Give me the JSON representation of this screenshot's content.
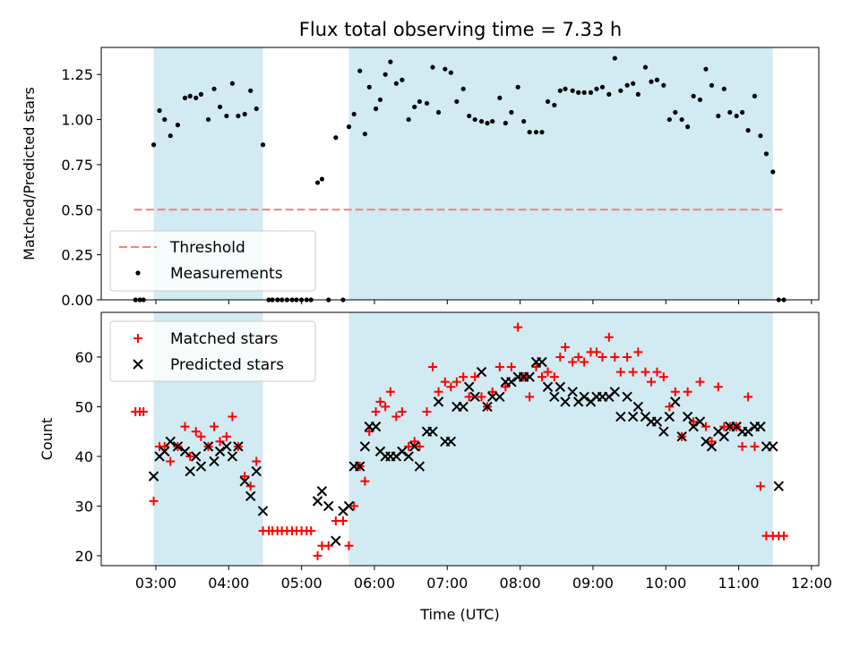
{
  "title": "Flux total observing time = 7.33 h",
  "colors": {
    "threshold": "#f08080",
    "measurements": "#000000",
    "matched": "#ff0000",
    "predicted": "#000000",
    "span": "#add8e6"
  },
  "chart_data": [
    {
      "type": "scatter",
      "ylabel": "Matched/Predicted stars",
      "ylim": [
        0,
        1.4
      ],
      "yticks": [
        0,
        0.25,
        0.5,
        0.75,
        1.0,
        1.25
      ],
      "ytick_labels": [
        "0.00",
        "0.25",
        "0.50",
        "0.75",
        "1.00",
        "1.25"
      ],
      "xlim": [
        2.25,
        12.1
      ],
      "xticks": [
        3,
        4,
        5,
        6,
        7,
        8,
        9,
        10,
        11,
        12
      ],
      "shaded_spans": [
        [
          2.97,
          4.47
        ],
        [
          5.65,
          11.47
        ]
      ],
      "legend_position": "lower-left",
      "threshold": {
        "name": "Threshold",
        "value": 0.5,
        "x_range": [
          2.7,
          11.6
        ]
      },
      "series": [
        {
          "name": "Measurements",
          "x": [
            2.72,
            2.78,
            2.83,
            2.97,
            3.05,
            3.12,
            3.2,
            3.3,
            3.4,
            3.47,
            3.55,
            3.62,
            3.72,
            3.8,
            3.88,
            3.97,
            4.05,
            4.13,
            4.22,
            4.3,
            4.38,
            4.47,
            4.55,
            4.6,
            4.67,
            4.73,
            4.8,
            4.87,
            4.93,
            5.0,
            5.07,
            5.13,
            5.22,
            5.28,
            5.37,
            5.47,
            5.57,
            5.65,
            5.72,
            5.8,
            5.87,
            5.93,
            6.02,
            6.08,
            6.15,
            6.22,
            6.3,
            6.38,
            6.47,
            6.55,
            6.62,
            6.72,
            6.8,
            6.88,
            6.97,
            7.05,
            7.13,
            7.22,
            7.3,
            7.38,
            7.47,
            7.55,
            7.62,
            7.72,
            7.8,
            7.88,
            7.97,
            8.05,
            8.13,
            8.22,
            8.3,
            8.38,
            8.47,
            8.55,
            8.62,
            8.72,
            8.8,
            8.88,
            8.97,
            9.05,
            9.13,
            9.22,
            9.3,
            9.38,
            9.47,
            9.55,
            9.62,
            9.72,
            9.8,
            9.88,
            9.97,
            10.05,
            10.13,
            10.22,
            10.3,
            10.38,
            10.47,
            10.55,
            10.63,
            10.72,
            10.8,
            10.88,
            10.97,
            11.05,
            11.13,
            11.22,
            11.3,
            11.38,
            11.47,
            11.55,
            11.62
          ],
          "y": [
            0.0,
            0.0,
            0.0,
            0.86,
            1.05,
            1.0,
            0.91,
            0.97,
            1.12,
            1.13,
            1.12,
            1.14,
            1.0,
            1.17,
            1.07,
            1.02,
            1.2,
            1.02,
            1.03,
            1.16,
            1.06,
            0.86,
            0.0,
            0.0,
            0.0,
            0.0,
            0.0,
            0.0,
            0.0,
            0.0,
            0.0,
            0.0,
            0.65,
            0.67,
            0.0,
            0.9,
            0.0,
            0.96,
            1.03,
            1.27,
            0.92,
            1.18,
            1.06,
            1.11,
            1.25,
            1.32,
            1.2,
            1.22,
            1.0,
            1.07,
            1.1,
            1.09,
            1.29,
            1.04,
            1.28,
            1.26,
            1.1,
            1.17,
            1.02,
            1.0,
            0.99,
            0.98,
            0.99,
            1.12,
            0.98,
            1.04,
            1.18,
            0.99,
            0.93,
            0.93,
            0.93,
            1.1,
            1.08,
            1.16,
            1.17,
            1.16,
            1.15,
            1.15,
            1.15,
            1.17,
            1.18,
            1.14,
            1.34,
            1.16,
            1.19,
            1.2,
            1.14,
            1.29,
            1.21,
            1.22,
            1.19,
            1.0,
            1.04,
            1.0,
            0.96,
            1.13,
            1.11,
            1.28,
            1.19,
            1.02,
            1.17,
            1.04,
            1.02,
            1.04,
            0.94,
            1.13,
            0.91,
            0.81,
            0.71,
            0.0,
            0.0
          ]
        }
      ]
    },
    {
      "type": "scatter",
      "ylabel": "Count",
      "xlabel": "Time (UTC)",
      "ylim": [
        18,
        69
      ],
      "yticks": [
        20,
        30,
        40,
        50,
        60
      ],
      "xlim": [
        2.25,
        12.1
      ],
      "xticks": [
        3,
        4,
        5,
        6,
        7,
        8,
        9,
        10,
        11,
        12
      ],
      "xtick_labels": [
        "03:00",
        "04:00",
        "05:00",
        "06:00",
        "07:00",
        "08:00",
        "09:00",
        "10:00",
        "11:00",
        "12:00"
      ],
      "shaded_spans": [
        [
          2.97,
          4.47
        ],
        [
          5.65,
          11.47
        ]
      ],
      "legend_position": "upper-left",
      "series": [
        {
          "name": "Matched stars",
          "marker": "plus",
          "x": [
            2.72,
            2.78,
            2.83,
            2.97,
            3.05,
            3.12,
            3.2,
            3.3,
            3.4,
            3.47,
            3.55,
            3.62,
            3.72,
            3.8,
            3.88,
            3.97,
            4.05,
            4.13,
            4.22,
            4.3,
            4.38,
            4.47,
            4.55,
            4.6,
            4.67,
            4.73,
            4.8,
            4.87,
            4.93,
            5.0,
            5.07,
            5.13,
            5.22,
            5.28,
            5.37,
            5.47,
            5.57,
            5.65,
            5.72,
            5.8,
            5.87,
            5.93,
            6.02,
            6.08,
            6.15,
            6.22,
            6.3,
            6.38,
            6.47,
            6.55,
            6.62,
            6.72,
            6.8,
            6.88,
            6.97,
            7.05,
            7.13,
            7.22,
            7.3,
            7.38,
            7.47,
            7.55,
            7.62,
            7.72,
            7.8,
            7.88,
            7.97,
            8.05,
            8.13,
            8.22,
            8.3,
            8.38,
            8.47,
            8.55,
            8.62,
            8.72,
            8.8,
            8.88,
            8.97,
            9.05,
            9.13,
            9.22,
            9.3,
            9.38,
            9.47,
            9.55,
            9.62,
            9.72,
            9.8,
            9.88,
            9.97,
            10.05,
            10.13,
            10.22,
            10.3,
            10.38,
            10.47,
            10.55,
            10.63,
            10.72,
            10.8,
            10.88,
            10.97,
            11.05,
            11.13,
            11.22,
            11.3,
            11.38,
            11.47,
            11.55,
            11.62
          ],
          "y": [
            49,
            49,
            49,
            31,
            42,
            42,
            39,
            42,
            46,
            40,
            45,
            44,
            42,
            46,
            43,
            44,
            48,
            42,
            36,
            34,
            39,
            25,
            25,
            25,
            25,
            25,
            25,
            25,
            25,
            25,
            25,
            25,
            20,
            22,
            22,
            27,
            27,
            22,
            30,
            38,
            35,
            45,
            49,
            51,
            50,
            53,
            48,
            49,
            42,
            43,
            42,
            49,
            58,
            53,
            55,
            54,
            55,
            56,
            52,
            56,
            52,
            50,
            53,
            58,
            54,
            58,
            66,
            56,
            52,
            58,
            56,
            57,
            56,
            60,
            62,
            59,
            60,
            59,
            61,
            61,
            60,
            64,
            60,
            57,
            60,
            57,
            61,
            57,
            55,
            57,
            56,
            50,
            53,
            44,
            53,
            47,
            55,
            46,
            43,
            54,
            46,
            46,
            46,
            42,
            52,
            42,
            34,
            24,
            24,
            24,
            24
          ]
        },
        {
          "name": "Predicted stars",
          "marker": "x",
          "x": [
            2.97,
            3.05,
            3.12,
            3.2,
            3.3,
            3.4,
            3.47,
            3.55,
            3.62,
            3.72,
            3.8,
            3.88,
            3.97,
            4.05,
            4.13,
            4.22,
            4.3,
            4.38,
            4.47,
            5.22,
            5.28,
            5.37,
            5.47,
            5.57,
            5.65,
            5.72,
            5.8,
            5.87,
            5.93,
            6.02,
            6.08,
            6.15,
            6.22,
            6.3,
            6.38,
            6.47,
            6.55,
            6.62,
            6.72,
            6.8,
            6.88,
            6.97,
            7.05,
            7.13,
            7.22,
            7.3,
            7.38,
            7.47,
            7.55,
            7.62,
            7.72,
            7.8,
            7.88,
            7.97,
            8.05,
            8.13,
            8.22,
            8.3,
            8.38,
            8.47,
            8.55,
            8.62,
            8.72,
            8.8,
            8.88,
            8.97,
            9.05,
            9.13,
            9.22,
            9.3,
            9.38,
            9.47,
            9.55,
            9.62,
            9.72,
            9.8,
            9.88,
            9.97,
            10.05,
            10.13,
            10.22,
            10.3,
            10.38,
            10.47,
            10.55,
            10.63,
            10.72,
            10.8,
            10.88,
            10.97,
            11.05,
            11.13,
            11.22,
            11.3,
            11.38,
            11.47,
            11.55
          ],
          "y": [
            36,
            40,
            41,
            43,
            42,
            41,
            37,
            40,
            38,
            42,
            39,
            41,
            42,
            40,
            42,
            35,
            32,
            37,
            29,
            31,
            33,
            30,
            23,
            29,
            30,
            38,
            38,
            42,
            46,
            46,
            41,
            40,
            40,
            40,
            41,
            40,
            42,
            38,
            45,
            45,
            51,
            43,
            43,
            50,
            50,
            54,
            52,
            57,
            50,
            52,
            52,
            55,
            55,
            56,
            56,
            56,
            59,
            59,
            54,
            52,
            54,
            51,
            53,
            51,
            52,
            51,
            52,
            52,
            52,
            53,
            48,
            52,
            48,
            50,
            48,
            47,
            47,
            45,
            48,
            51,
            44,
            48,
            46,
            47,
            43,
            42,
            45,
            44,
            46,
            46,
            45,
            45,
            46,
            46,
            42,
            42,
            34
          ]
        }
      ]
    }
  ]
}
